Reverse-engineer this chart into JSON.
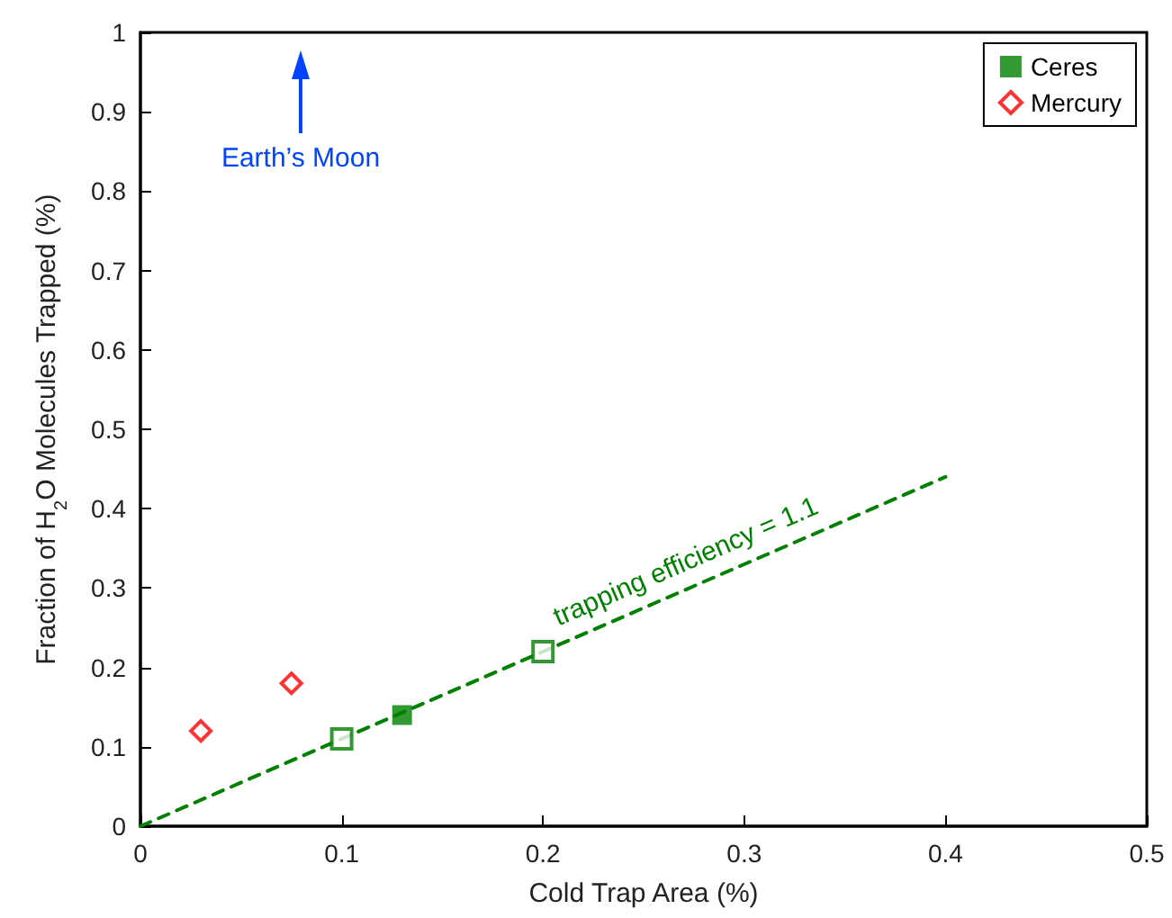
{
  "chart_data": {
    "type": "scatter",
    "xlabel": "Cold Trap Area (%)",
    "ylabel": "Fraction of H$_{2}$O Molecules Trapped (%)",
    "xlim": [
      0,
      0.5
    ],
    "xticks": [
      0,
      0.1,
      0.2,
      0.3,
      0.4,
      0.5
    ],
    "ylim": [
      0,
      1
    ],
    "yticks": [
      0,
      0.1,
      0.2,
      0.3,
      0.4,
      0.5,
      0.6,
      0.7,
      0.8,
      0.9,
      1
    ],
    "grid": false,
    "legend": "top right",
    "series": [
      {
        "name": "Ceres",
        "color": "#008000",
        "marker": "square",
        "x": [
          0.13
        ],
        "values": [
          0.14
        ]
      },
      {
        "name": "Mercury",
        "color": "#ff0000",
        "marker": "diamond",
        "x": [
          0.03,
          0.075
        ],
        "values": [
          0.12,
          0.18
        ]
      },
      {
        "color": "#008000",
        "marker": "square",
        "x": [
          0.1,
          0.2
        ],
        "values": [
          0.11,
          0.22
        ]
      },
      {
        "type": "line",
        "color": "#008000",
        "marker": "none",
        "line_style": "dashed",
        "x": [
          0,
          0.4
        ],
        "values": [
          0,
          0.44
        ]
      }
    ],
    "annotations": [
      "trapping efficiency = 1.1",
      "Earth’s Moon"
    ]
  }
}
